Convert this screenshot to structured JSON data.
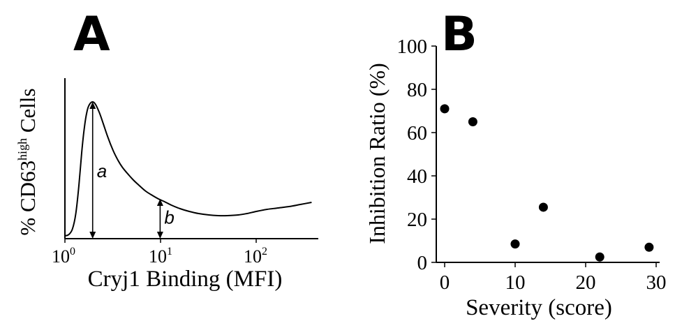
{
  "panels": [
    {
      "letter": "A"
    },
    {
      "letter": "B"
    }
  ],
  "chart_data": [
    {
      "type": "line",
      "panel": "A",
      "xlabel": "Cryj1 Binding (MFI)",
      "ylabel_main": "% CD63",
      "ylabel_sup": "high",
      "ylabel_tail": " Cells",
      "x_scale": "log",
      "xlim": [
        1,
        400
      ],
      "ylim": [
        0,
        100
      ],
      "x_ticks": [
        {
          "value": 1,
          "base": "10",
          "exp": "0"
        },
        {
          "value": 10,
          "base": "10",
          "exp": "1"
        },
        {
          "value": 100,
          "base": "10",
          "exp": "2"
        }
      ],
      "y_ticks_shown": false,
      "series": [
        {
          "x": [
            1.0,
            1.1,
            1.2,
            1.3,
            1.4,
            1.5,
            1.6,
            1.7,
            1.8,
            1.95,
            2.1,
            2.3,
            2.5,
            2.8,
            3.2,
            3.6,
            4.0,
            4.6,
            5.2,
            6.0,
            7.0,
            8.2,
            9.5,
            11.0,
            13.0,
            16.0,
            20.0,
            25.0,
            32.0,
            40.0,
            50.0,
            65.0,
            80.0,
            100.0,
            130.0,
            170.0,
            220.0,
            290.0,
            380.0
          ],
          "y": [
            2,
            3,
            7,
            18,
            38,
            62,
            80,
            91,
            96,
            98,
            96,
            90,
            83,
            73,
            63,
            56,
            51,
            46,
            42,
            38,
            34,
            31,
            28.5,
            26.5,
            24,
            21.5,
            19.5,
            18,
            17,
            16.5,
            16.5,
            17,
            18,
            19.5,
            21,
            22,
            23,
            24.5,
            26
          ]
        }
      ],
      "annotations": [
        {
          "label": "a",
          "x": 1.95,
          "y_from": 0,
          "y_to": 98
        },
        {
          "label": "b",
          "x": 9.9,
          "y_from": 0,
          "y_to": 28.5
        }
      ]
    },
    {
      "type": "scatter",
      "panel": "B",
      "xlabel": "Severity (score)",
      "ylabel": "Inhibition Ratio (%)",
      "xlim": [
        0,
        30
      ],
      "ylim": [
        0,
        100
      ],
      "x_ticks": [
        0,
        10,
        20,
        30
      ],
      "y_ticks": [
        0,
        20,
        40,
        60,
        80,
        100
      ],
      "points": [
        {
          "x": 0,
          "y": 71
        },
        {
          "x": 4,
          "y": 65
        },
        {
          "x": 10,
          "y": 8.5
        },
        {
          "x": 14,
          "y": 25.5
        },
        {
          "x": 22,
          "y": 2.5
        },
        {
          "x": 29,
          "y": 7
        }
      ]
    }
  ]
}
